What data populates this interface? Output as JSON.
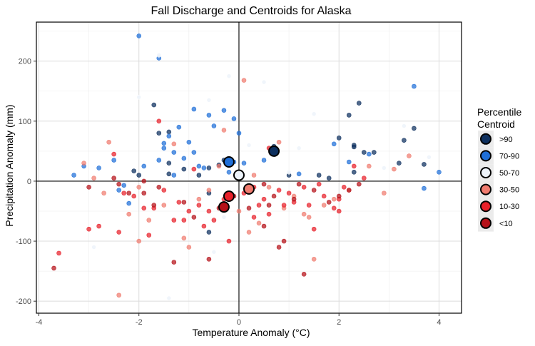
{
  "chart_data": {
    "type": "scatter",
    "title": "Fall Discharge and Centroids for Alaska",
    "xlabel": "Temperature Anomaly (°C)",
    "ylabel": "Precipitation Anomaly (mm)",
    "xlim": [
      -4.05,
      4.45
    ],
    "ylim": [
      -220,
      265
    ],
    "xticks": [
      -4,
      -2,
      0,
      2,
      4
    ],
    "yticks": [
      -200,
      -100,
      0,
      100,
      200
    ],
    "grid": true,
    "legend": {
      "title_lines": [
        "Percentile",
        "Centroid"
      ],
      "placement": "right"
    },
    "series": [
      {
        "name": ">90",
        "color": "#0d2f5e",
        "centroid": [
          0.7,
          50
        ],
        "points": [
          [
            -2.0,
            10
          ],
          [
            -1.7,
            127
          ],
          [
            -1.6,
            80
          ],
          [
            -1.4,
            82
          ],
          [
            -1.4,
            30
          ],
          [
            -1.4,
            12
          ],
          [
            -1.1,
            20
          ],
          [
            -0.8,
            10
          ],
          [
            -0.6,
            22
          ],
          [
            -0.6,
            -20
          ],
          [
            -0.6,
            -85
          ],
          [
            -0.4,
            27
          ],
          [
            0.7,
            58
          ],
          [
            1.6,
            10
          ],
          [
            1.8,
            5
          ],
          [
            2.0,
            72
          ],
          [
            2.2,
            110
          ],
          [
            2.3,
            60
          ],
          [
            2.3,
            57
          ],
          [
            2.4,
            130
          ],
          [
            2.5,
            48
          ],
          [
            2.7,
            48
          ],
          [
            3.2,
            30
          ],
          [
            3.3,
            68
          ],
          [
            3.5,
            88
          ],
          [
            3.7,
            28
          ],
          [
            -0.3,
            35
          ],
          [
            -2.1,
            17
          ],
          [
            2.3,
            15
          ],
          [
            1.0,
            10
          ]
        ]
      },
      {
        "name": "70-90",
        "color": "#1f6fd8",
        "centroid": [
          -0.2,
          32
        ],
        "points": [
          [
            -2.0,
            242
          ],
          [
            -1.6,
            205
          ],
          [
            -0.9,
            120
          ],
          [
            -0.3,
            118
          ],
          [
            -0.6,
            110
          ],
          [
            -0.1,
            104
          ],
          [
            -0.5,
            92
          ],
          [
            -1.2,
            90
          ],
          [
            -1.4,
            75
          ],
          [
            -1.5,
            63
          ],
          [
            -1.5,
            55
          ],
          [
            -1.3,
            48
          ],
          [
            -1.0,
            65
          ],
          [
            -0.9,
            48
          ],
          [
            -1.1,
            38
          ],
          [
            -0.8,
            25
          ],
          [
            -0.7,
            22
          ],
          [
            -1.3,
            10
          ],
          [
            -2.5,
            35
          ],
          [
            -3.3,
            10
          ],
          [
            -3.1,
            25
          ],
          [
            -2.8,
            22
          ],
          [
            -2.3,
            -7
          ],
          [
            -2.2,
            -37
          ],
          [
            -0.1,
            32
          ],
          [
            0.1,
            30
          ],
          [
            0.0,
            80
          ],
          [
            0.5,
            35
          ],
          [
            1.2,
            12
          ],
          [
            1.9,
            62
          ],
          [
            2.6,
            45
          ],
          [
            3.5,
            158
          ],
          [
            4.0,
            15
          ],
          [
            3.7,
            -12
          ],
          [
            2.2,
            32
          ],
          [
            -1.6,
            35
          ],
          [
            -0.2,
            15
          ],
          [
            -1.9,
            25
          ],
          [
            -2.4,
            -15
          ]
        ]
      },
      {
        "name": "50-70",
        "color": "#eef4fb",
        "centroid": [
          0.0,
          10
        ],
        "points": [
          [
            -1.6,
            210
          ],
          [
            -0.2,
            175
          ],
          [
            0.5,
            165
          ],
          [
            1.5,
            112
          ],
          [
            -0.6,
            135
          ],
          [
            -2.0,
            140
          ],
          [
            0.7,
            45
          ],
          [
            1.0,
            15
          ],
          [
            -2.9,
            -110
          ],
          [
            -0.5,
            -118
          ],
          [
            -1.4,
            -195
          ],
          [
            3.3,
            92
          ],
          [
            3.8,
            40
          ],
          [
            2.9,
            22
          ],
          [
            1.2,
            55
          ],
          [
            0.2,
            60
          ],
          [
            -0.3,
            -60
          ]
        ]
      },
      {
        "name": "30-50",
        "color": "#f07b6f",
        "centroid": [
          0.2,
          -13
        ],
        "points": [
          [
            -3.1,
            30
          ],
          [
            -2.6,
            65
          ],
          [
            -2.9,
            5
          ],
          [
            -2.7,
            -20
          ],
          [
            -2.2,
            -55
          ],
          [
            -2.0,
            -10
          ],
          [
            -1.8,
            -65
          ],
          [
            -1.5,
            -40
          ],
          [
            -1.1,
            -95
          ],
          [
            -1.0,
            -110
          ],
          [
            -0.8,
            -30
          ],
          [
            -0.6,
            -15
          ],
          [
            -0.4,
            25
          ],
          [
            0.0,
            -50
          ],
          [
            0.2,
            -85
          ],
          [
            0.3,
            10
          ],
          [
            0.4,
            -70
          ],
          [
            0.6,
            -10
          ],
          [
            0.8,
            65
          ],
          [
            1.1,
            -25
          ],
          [
            1.3,
            -55
          ],
          [
            1.5,
            -130
          ],
          [
            1.7,
            -40
          ],
          [
            1.9,
            -30
          ],
          [
            2.2,
            -15
          ],
          [
            2.6,
            25
          ],
          [
            2.9,
            -20
          ],
          [
            3.1,
            20
          ],
          [
            3.4,
            42
          ],
          [
            -2.4,
            -190
          ],
          [
            -2.0,
            -100
          ],
          [
            1.4,
            -60
          ],
          [
            0.9,
            -45
          ],
          [
            -0.3,
            85
          ],
          [
            -1.3,
            62
          ],
          [
            0.1,
            168
          ]
        ]
      },
      {
        "name": "10-30",
        "color": "#e8202a",
        "centroid": [
          -0.2,
          -25
        ],
        "points": [
          [
            -3.6,
            -120
          ],
          [
            -3.0,
            -80
          ],
          [
            -2.8,
            -75
          ],
          [
            -2.5,
            45
          ],
          [
            -2.4,
            -85
          ],
          [
            -2.3,
            -20
          ],
          [
            -2.1,
            -25
          ],
          [
            -1.9,
            -45
          ],
          [
            -1.8,
            -90
          ],
          [
            -1.7,
            -45
          ],
          [
            -1.6,
            100
          ],
          [
            -1.5,
            -15
          ],
          [
            -1.3,
            -65
          ],
          [
            -1.2,
            -35
          ],
          [
            -1.0,
            -50
          ],
          [
            -0.9,
            20
          ],
          [
            -0.8,
            -40
          ],
          [
            -0.7,
            -75
          ],
          [
            -0.6,
            -50
          ],
          [
            -0.5,
            -65
          ],
          [
            -0.3,
            -30
          ],
          [
            -0.2,
            -100
          ],
          [
            0.1,
            -20
          ],
          [
            0.3,
            -10
          ],
          [
            0.4,
            -40
          ],
          [
            0.5,
            -30
          ],
          [
            0.6,
            -55
          ],
          [
            0.8,
            -15
          ],
          [
            0.9,
            -40
          ],
          [
            1.0,
            -20
          ],
          [
            1.1,
            -35
          ],
          [
            1.3,
            -10
          ],
          [
            1.4,
            -40
          ],
          [
            1.6,
            -5
          ],
          [
            1.7,
            -25
          ],
          [
            1.9,
            -45
          ],
          [
            2.0,
            -30
          ],
          [
            2.1,
            -10
          ],
          [
            2.3,
            25
          ],
          [
            2.5,
            5
          ],
          [
            0.6,
            55
          ],
          [
            1.5,
            -80
          ],
          [
            -1.1,
            -65
          ],
          [
            2.0,
            -50
          ],
          [
            0.3,
            -60
          ]
        ]
      },
      {
        "name": "<10",
        "color": "#b51018",
        "centroid": [
          -0.3,
          -43
        ],
        "points": [
          [
            -3.7,
            -145
          ],
          [
            -3.0,
            -10
          ],
          [
            -2.5,
            5
          ],
          [
            -2.4,
            -5
          ],
          [
            -2.2,
            -20
          ],
          [
            -1.9,
            -20
          ],
          [
            -1.7,
            -40
          ],
          [
            -1.6,
            -10
          ],
          [
            -1.3,
            -135
          ],
          [
            -1.1,
            -35
          ],
          [
            -0.9,
            -60
          ],
          [
            -0.6,
            -130
          ],
          [
            -0.4,
            -45
          ],
          [
            -0.1,
            -25
          ],
          [
            0.2,
            -45
          ],
          [
            0.5,
            -5
          ],
          [
            0.6,
            -40
          ],
          [
            0.7,
            -25
          ],
          [
            0.8,
            -110
          ],
          [
            0.9,
            -100
          ],
          [
            1.1,
            -30
          ],
          [
            1.2,
            -5
          ],
          [
            1.3,
            -155
          ],
          [
            1.5,
            -15
          ],
          [
            1.8,
            -35
          ],
          [
            2.0,
            -25
          ],
          [
            2.2,
            -15
          ],
          [
            2.4,
            -5
          ],
          [
            -1.9,
            0
          ],
          [
            0.5,
            -75
          ]
        ]
      }
    ]
  }
}
